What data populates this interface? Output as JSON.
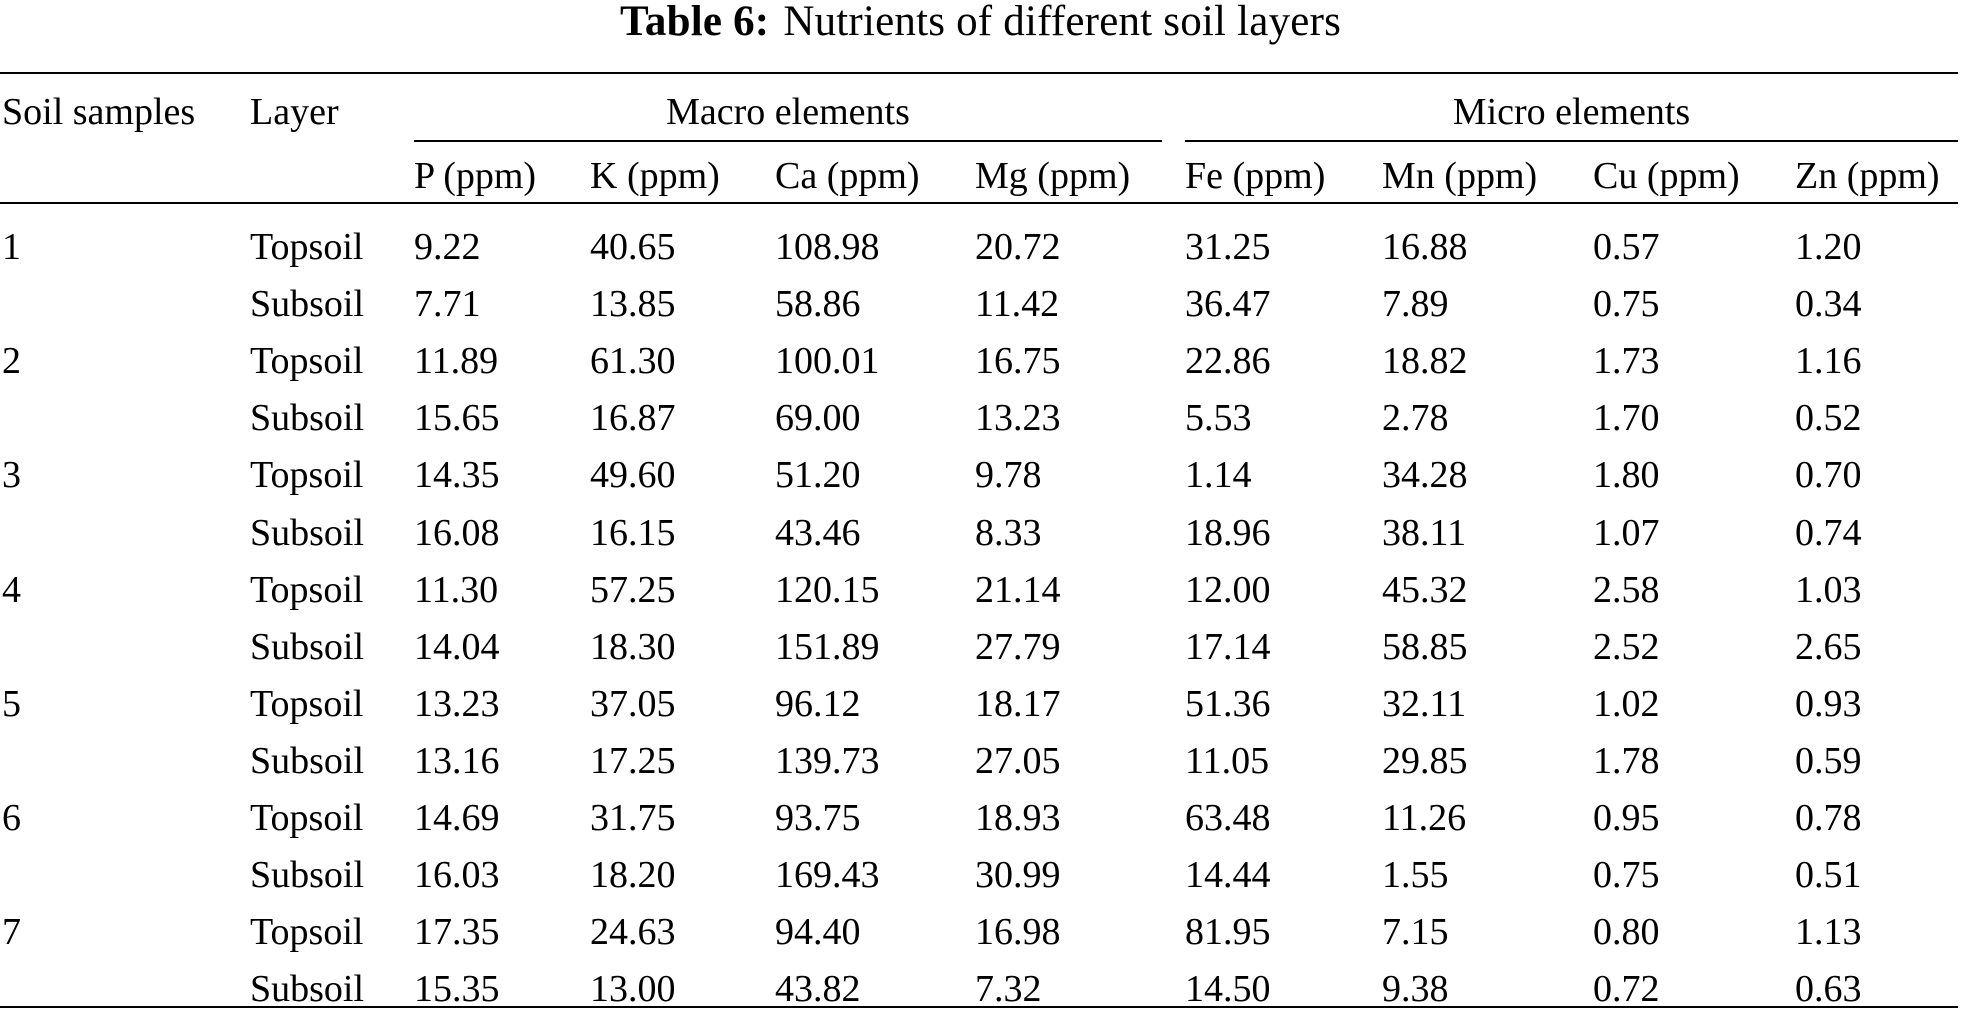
{
  "title": {
    "label": "Table 6:",
    "text": "Nutrients of different soil layers"
  },
  "headers": {
    "soil_samples": "Soil samples",
    "layer": "Layer",
    "macro_group": "Macro elements",
    "micro_group": "Micro elements",
    "columns": [
      "P (ppm)",
      "K (ppm)",
      "Ca (ppm)",
      "Mg (ppm)",
      "Fe (ppm)",
      "Mn (ppm)",
      "Cu (ppm)",
      "Zn (ppm)"
    ]
  },
  "rows": [
    {
      "sample": "1",
      "layer": "Topsoil",
      "values": [
        "9.22",
        "40.65",
        "108.98",
        "20.72",
        "31.25",
        "16.88",
        "0.57",
        "1.20"
      ]
    },
    {
      "sample": "",
      "layer": "Subsoil",
      "values": [
        "7.71",
        "13.85",
        "58.86",
        "11.42",
        "36.47",
        "7.89",
        "0.75",
        "0.34"
      ]
    },
    {
      "sample": "2",
      "layer": "Topsoil",
      "values": [
        "11.89",
        "61.30",
        "100.01",
        "16.75",
        "22.86",
        "18.82",
        "1.73",
        "1.16"
      ]
    },
    {
      "sample": "",
      "layer": "Subsoil",
      "values": [
        "15.65",
        "16.87",
        "69.00",
        "13.23",
        "5.53",
        "2.78",
        "1.70",
        "0.52"
      ]
    },
    {
      "sample": "3",
      "layer": "Topsoil",
      "values": [
        "14.35",
        "49.60",
        "51.20",
        "9.78",
        "1.14",
        "34.28",
        "1.80",
        "0.70"
      ]
    },
    {
      "sample": "",
      "layer": "Subsoil",
      "values": [
        "16.08",
        "16.15",
        "43.46",
        "8.33",
        "18.96",
        "38.11",
        "1.07",
        "0.74"
      ]
    },
    {
      "sample": "4",
      "layer": "Topsoil",
      "values": [
        "11.30",
        "57.25",
        "120.15",
        "21.14",
        "12.00",
        "45.32",
        "2.58",
        "1.03"
      ]
    },
    {
      "sample": "",
      "layer": "Subsoil",
      "values": [
        "14.04",
        "18.30",
        "151.89",
        "27.79",
        "17.14",
        "58.85",
        "2.52",
        "2.65"
      ]
    },
    {
      "sample": "5",
      "layer": "Topsoil",
      "values": [
        "13.23",
        "37.05",
        "96.12",
        "18.17",
        "51.36",
        "32.11",
        "1.02",
        "0.93"
      ]
    },
    {
      "sample": "",
      "layer": "Subsoil",
      "values": [
        "13.16",
        "17.25",
        "139.73",
        "27.05",
        "11.05",
        "29.85",
        "1.78",
        "0.59"
      ]
    },
    {
      "sample": "6",
      "layer": "Topsoil",
      "values": [
        "14.69",
        "31.75",
        "93.75",
        "18.93",
        "63.48",
        "11.26",
        "0.95",
        "0.78"
      ]
    },
    {
      "sample": "",
      "layer": "Subsoil",
      "values": [
        "16.03",
        "18.20",
        "169.43",
        "30.99",
        "14.44",
        "1.55",
        "0.75",
        "0.51"
      ]
    },
    {
      "sample": "7",
      "layer": "Topsoil",
      "values": [
        "17.35",
        "24.63",
        "94.40",
        "16.98",
        "81.95",
        "7.15",
        "0.80",
        "1.13"
      ]
    },
    {
      "sample": "",
      "layer": "Subsoil",
      "values": [
        "15.35",
        "13.00",
        "43.82",
        "7.32",
        "14.50",
        "9.38",
        "0.72",
        "0.63"
      ]
    }
  ]
}
